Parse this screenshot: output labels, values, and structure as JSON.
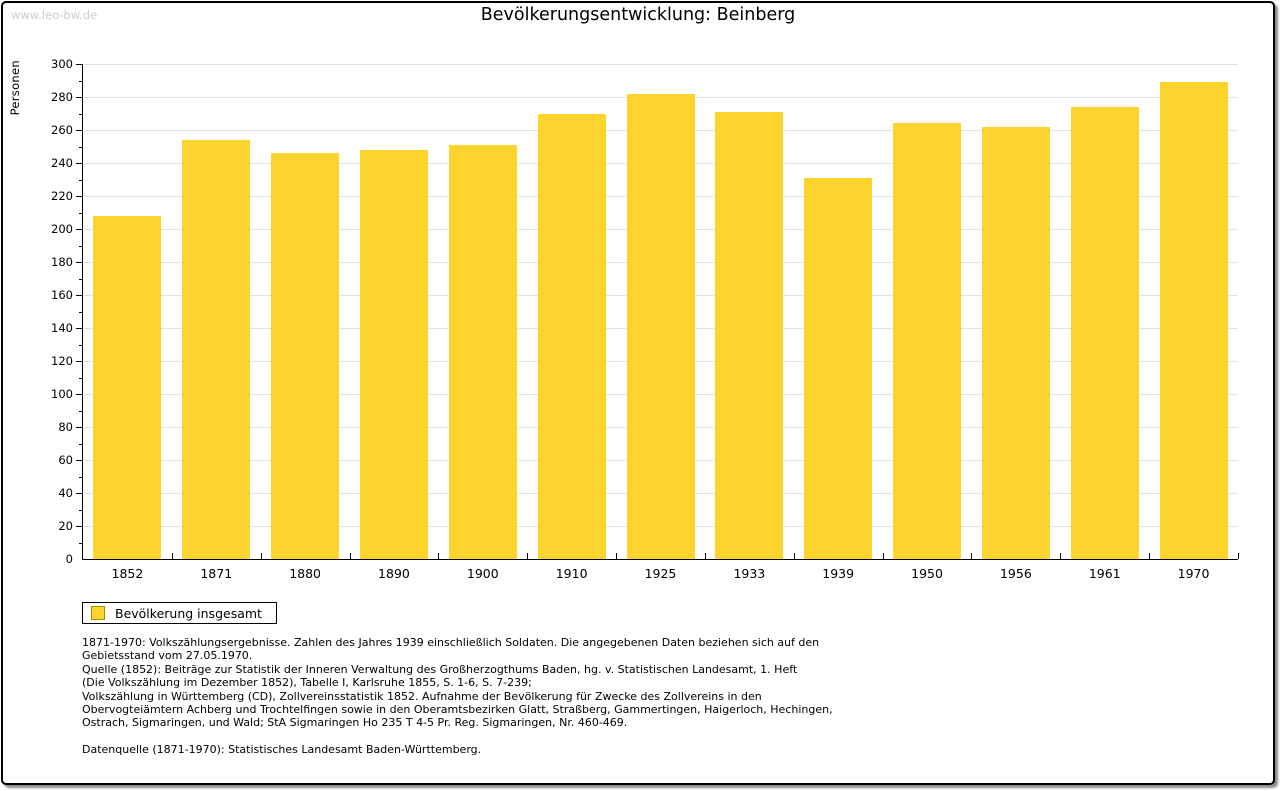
{
  "watermark": "www.leo-bw.de",
  "title": "Bevölkerungsentwicklung: Beinberg",
  "legend": {
    "label": "Bevölkerung insgesamt"
  },
  "colors": {
    "bar": "#FDD42E",
    "bar_border": "#A69100",
    "grid": "#E2E2E2",
    "axis": "#000000",
    "watermark": "#CCCCCC"
  },
  "chart_data": {
    "type": "bar",
    "title": "Bevölkerungsentwicklung: Beinberg",
    "xlabel": "",
    "ylabel": "Personen",
    "categories": [
      "1852",
      "1871",
      "1880",
      "1890",
      "1900",
      "1910",
      "1925",
      "1933",
      "1939",
      "1950",
      "1956",
      "1961",
      "1970"
    ],
    "values": [
      208,
      254,
      246,
      248,
      251,
      270,
      282,
      271,
      231,
      264,
      262,
      274,
      289
    ],
    "series_name": "Bevölkerung insgesamt",
    "ylim": [
      0,
      300
    ],
    "ytick_major": 20,
    "ytick_minor": 10,
    "grid": true,
    "legend_position": "bottom-left"
  },
  "footer": {
    "notes_lines": [
      "1871-1970: Volkszählungsergebnisse. Zahlen des Jahres 1939 einschließlich Soldaten. Die angegebenen Daten beziehen sich auf den",
      "Gebietsstand vom 27.05.1970.",
      "Quelle (1852): Beiträge zur Statistik der Inneren Verwaltung des Großherzogthums Baden, hg. v. Statistischen Landesamt, 1. Heft",
      "(Die Volkszählung im Dezember 1852), Tabelle I, Karlsruhe 1855, S. 1-6, S. 7-239;",
      "Volkszählung in Württemberg (CD), Zollvereinsstatistik 1852. Aufnahme der Bevölkerung für Zwecke des Zollvereins in den",
      "Obervogteiämtern Achberg und Trochtelfingen sowie in den Oberamtsbezirken Glatt, Straßberg, Gammertingen, Haigerloch, Hechingen,",
      "Ostrach, Sigmaringen, und Wald; StA Sigmaringen Ho 235 T 4-5 Pr. Reg. Sigmaringen, Nr. 460-469."
    ],
    "datasource": "Datenquelle (1871-1970): Statistisches Landesamt Baden-Württemberg."
  }
}
